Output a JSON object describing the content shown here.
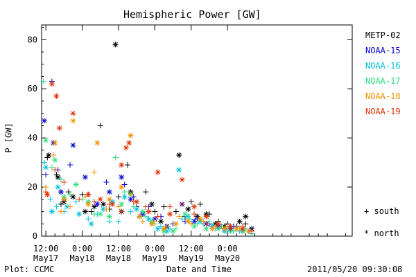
{
  "chart_data": {
    "type": "scatter",
    "title": "Hemispheric Power [GW]",
    "ylabel": "P [GW]",
    "xlabel": "Date and Time",
    "x_unit": "hours since 00:00 May17",
    "xlim": [
      10.6,
      113.2
    ],
    "ylim": [
      0,
      86
    ],
    "y_ticks": [
      0,
      20,
      40,
      60,
      80
    ],
    "x_ticks": [
      {
        "x": 12,
        "time": "12:00",
        "date": "May17"
      },
      {
        "x": 24,
        "time": "0:00",
        "date": "May18"
      },
      {
        "x": 36,
        "time": "12:00",
        "date": "May18"
      },
      {
        "x": 48,
        "time": "0:00",
        "date": "May19"
      },
      {
        "x": 60,
        "time": "12:00",
        "date": "May19"
      },
      {
        "x": 72,
        "time": "0:00",
        "date": "May20"
      }
    ],
    "marker_legend": {
      "south_symbol": "+",
      "south_label": "south",
      "north_symbol": "*",
      "north_label": "north"
    },
    "series": [
      {
        "name": "METP-02",
        "color": "#000000",
        "south": [
          [
            12.5,
            32
          ],
          [
            15.5,
            25
          ],
          [
            17,
            13
          ],
          [
            19.5,
            18
          ],
          [
            24,
            17
          ],
          [
            27,
            10
          ],
          [
            30,
            45
          ],
          [
            33,
            11
          ],
          [
            36,
            16
          ],
          [
            39,
            29
          ],
          [
            42,
            12
          ],
          [
            45,
            18
          ],
          [
            48,
            10
          ],
          [
            51,
            12
          ],
          [
            55,
            10
          ],
          [
            58,
            8
          ],
          [
            60,
            14
          ],
          [
            63,
            13
          ],
          [
            66,
            9
          ],
          [
            69,
            6
          ],
          [
            72,
            5
          ],
          [
            75,
            4
          ],
          [
            78,
            5
          ],
          [
            80,
            3
          ]
        ],
        "north": [
          [
            13,
            33
          ],
          [
            16,
            24
          ],
          [
            18,
            14
          ],
          [
            21,
            16
          ],
          [
            25,
            10
          ],
          [
            28,
            12
          ],
          [
            31,
            13
          ],
          [
            35,
            78
          ],
          [
            37,
            10
          ],
          [
            40,
            18
          ],
          [
            43,
            8
          ],
          [
            47,
            13
          ],
          [
            50,
            6
          ],
          [
            52,
            4
          ],
          [
            56,
            33
          ],
          [
            59,
            11
          ],
          [
            62,
            8
          ],
          [
            65,
            9
          ],
          [
            68,
            5
          ],
          [
            71,
            4
          ],
          [
            73,
            3
          ],
          [
            76,
            6
          ],
          [
            78,
            8
          ],
          [
            80,
            3
          ]
        ]
      },
      {
        "name": "NOAA-15",
        "color": "#0000d0",
        "south": [
          [
            12,
            25
          ],
          [
            14,
            63
          ],
          [
            16,
            27
          ],
          [
            20,
            29
          ],
          [
            26,
            17
          ],
          [
            32,
            22
          ],
          [
            38,
            21
          ],
          [
            41,
            16
          ],
          [
            46,
            12
          ],
          [
            50,
            8
          ],
          [
            54,
            5
          ],
          [
            58,
            6
          ],
          [
            62,
            7
          ],
          [
            66,
            5
          ],
          [
            70,
            4
          ],
          [
            74,
            4
          ],
          [
            77,
            3
          ],
          [
            80,
            3
          ]
        ],
        "north": [
          [
            11.5,
            47
          ],
          [
            14.5,
            38
          ],
          [
            17,
            18
          ],
          [
            21,
            37
          ],
          [
            25,
            24
          ],
          [
            29,
            13
          ],
          [
            33,
            18
          ],
          [
            37,
            24
          ],
          [
            40,
            15
          ],
          [
            44,
            9
          ],
          [
            48,
            7
          ],
          [
            52,
            4
          ],
          [
            57,
            13
          ],
          [
            61,
            6
          ],
          [
            65,
            5
          ],
          [
            69,
            4
          ],
          [
            73,
            3
          ],
          [
            77,
            2
          ]
        ]
      },
      {
        "name": "NOAA-16",
        "color": "#00c0e0",
        "south": [
          [
            11.5,
            30
          ],
          [
            13.5,
            15
          ],
          [
            15.5,
            12
          ],
          [
            18,
            10
          ],
          [
            22,
            14
          ],
          [
            26,
            7
          ],
          [
            29,
            9
          ],
          [
            33,
            6
          ],
          [
            36,
            6
          ],
          [
            40,
            10
          ],
          [
            43,
            8
          ],
          [
            47,
            5
          ],
          [
            50,
            4
          ],
          [
            53,
            3
          ],
          [
            57,
            7
          ],
          [
            60,
            6
          ],
          [
            64,
            5
          ],
          [
            68,
            3
          ],
          [
            72,
            3
          ],
          [
            76,
            2
          ],
          [
            80,
            1
          ]
        ],
        "north": [
          [
            12,
            28
          ],
          [
            14,
            10
          ],
          [
            16,
            20
          ],
          [
            19,
            12
          ],
          [
            23,
            9
          ],
          [
            27,
            5
          ],
          [
            31,
            11
          ],
          [
            34,
            14
          ],
          [
            38,
            16
          ],
          [
            42,
            11
          ],
          [
            46,
            7
          ],
          [
            49,
            3
          ],
          [
            52,
            2
          ],
          [
            56,
            27
          ],
          [
            59,
            8
          ],
          [
            63,
            6
          ],
          [
            67,
            4
          ],
          [
            71,
            2
          ],
          [
            75,
            3
          ],
          [
            79,
            2
          ]
        ]
      },
      {
        "name": "NOAA-17",
        "color": "#30e080",
        "south": [
          [
            11.2,
            63
          ],
          [
            14,
            28
          ],
          [
            17,
            23
          ],
          [
            20,
            17
          ],
          [
            24,
            15
          ],
          [
            28,
            9
          ],
          [
            32,
            11
          ],
          [
            35,
            32
          ],
          [
            38,
            18
          ],
          [
            41,
            12
          ],
          [
            45,
            8
          ],
          [
            48,
            5
          ],
          [
            51,
            3
          ],
          [
            55,
            3
          ],
          [
            59,
            7
          ],
          [
            62,
            5
          ],
          [
            66,
            6
          ],
          [
            70,
            4
          ],
          [
            74,
            2
          ],
          [
            78,
            3
          ]
        ],
        "north": [
          [
            12,
            39
          ],
          [
            15,
            31
          ],
          [
            18,
            16
          ],
          [
            22,
            21
          ],
          [
            26,
            14
          ],
          [
            30,
            9
          ],
          [
            33,
            8
          ],
          [
            37,
            13
          ],
          [
            40,
            17
          ],
          [
            44,
            10
          ],
          [
            47,
            6
          ],
          [
            51,
            2
          ],
          [
            54,
            2
          ],
          [
            58,
            9
          ],
          [
            61,
            4
          ],
          [
            65,
            3
          ],
          [
            69,
            3
          ],
          [
            73,
            2
          ],
          [
            77,
            2
          ]
        ]
      },
      {
        "name": "NOAA-18",
        "color": "#f09000",
        "south": [
          [
            12,
            20
          ],
          [
            14.5,
            33
          ],
          [
            17,
            10
          ],
          [
            20,
            12
          ],
          [
            25,
            16
          ],
          [
            28,
            26
          ],
          [
            32,
            11
          ],
          [
            36,
            12
          ],
          [
            40,
            17
          ],
          [
            44,
            6
          ],
          [
            48,
            6
          ],
          [
            52,
            4
          ],
          [
            56,
            8
          ],
          [
            60,
            5
          ],
          [
            64,
            6
          ],
          [
            68,
            4
          ],
          [
            72,
            4
          ],
          [
            76,
            3
          ],
          [
            80,
            2
          ]
        ],
        "north": [
          [
            12.5,
            17
          ],
          [
            15,
            38
          ],
          [
            18,
            15
          ],
          [
            21,
            47
          ],
          [
            26,
            13
          ],
          [
            29,
            38
          ],
          [
            33,
            15
          ],
          [
            37,
            20
          ],
          [
            40,
            41
          ],
          [
            43,
            8
          ],
          [
            47,
            5
          ],
          [
            51,
            3
          ],
          [
            55,
            5
          ],
          [
            59,
            6
          ],
          [
            63,
            7
          ],
          [
            67,
            3
          ],
          [
            71,
            3
          ],
          [
            75,
            3
          ],
          [
            79,
            2
          ]
        ]
      },
      {
        "name": "NOAA-19",
        "color": "#e03000",
        "south": [
          [
            12,
            18
          ],
          [
            15,
            27
          ],
          [
            18,
            22
          ],
          [
            23,
            15
          ],
          [
            28,
            14
          ],
          [
            33,
            13
          ],
          [
            37,
            10
          ],
          [
            41,
            14
          ],
          [
            45,
            12
          ],
          [
            49,
            8
          ],
          [
            53,
            12
          ],
          [
            57,
            13
          ],
          [
            61,
            9
          ],
          [
            65,
            5
          ],
          [
            69,
            4
          ],
          [
            73,
            3
          ],
          [
            77,
            4
          ],
          [
            80,
            2
          ]
        ],
        "north": [
          [
            12.5,
            17
          ],
          [
            14,
            62
          ],
          [
            15.5,
            57
          ],
          [
            16.5,
            44
          ],
          [
            21,
            50
          ],
          [
            26,
            17
          ],
          [
            30,
            15
          ],
          [
            34,
            13
          ],
          [
            37,
            29
          ],
          [
            38.5,
            36
          ],
          [
            39.5,
            38
          ],
          [
            42,
            14
          ],
          [
            46,
            10
          ],
          [
            49,
            26
          ],
          [
            53,
            9
          ],
          [
            57,
            23
          ],
          [
            61,
            12
          ],
          [
            65,
            8
          ],
          [
            69,
            5
          ],
          [
            73,
            4
          ],
          [
            77,
            3
          ]
        ]
      }
    ]
  },
  "footer": {
    "plot_credit": "Plot: CCMC",
    "timestamp": "2011/05/20 09:30:08"
  }
}
